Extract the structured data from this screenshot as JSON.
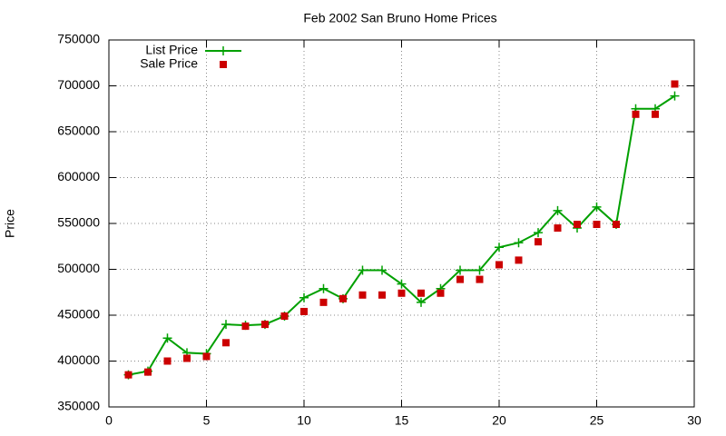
{
  "chart_data": {
    "type": "line",
    "title": "Feb 2002 San Bruno Home Prices",
    "y_label": "Price",
    "x": [
      1,
      2,
      3,
      4,
      5,
      6,
      7,
      8,
      9,
      10,
      11,
      12,
      13,
      14,
      15,
      16,
      17,
      18,
      19,
      20,
      21,
      22,
      23,
      24,
      25,
      26,
      27,
      28,
      29
    ],
    "series": [
      {
        "name": "List Price",
        "color": "#00a000",
        "mode": "lines+points",
        "marker": "plus",
        "values": [
          385000,
          389000,
          425000,
          409000,
          408000,
          440000,
          439000,
          440000,
          449000,
          469000,
          479000,
          468000,
          499000,
          499000,
          484000,
          464000,
          479000,
          499000,
          499000,
          524000,
          529000,
          540000,
          564000,
          545000,
          568000,
          549000,
          675000,
          675000,
          689000
        ]
      },
      {
        "name": "Sale Price",
        "color": "#cc0000",
        "mode": "points",
        "marker": "square",
        "values": [
          385000,
          388000,
          400000,
          403000,
          405000,
          420000,
          438000,
          440000,
          449000,
          454000,
          464000,
          468000,
          472000,
          472000,
          474000,
          474000,
          474000,
          489000,
          489000,
          505000,
          510000,
          530000,
          545000,
          549000,
          549000,
          549000,
          669000,
          669000,
          702000
        ]
      }
    ],
    "xlim": [
      0,
      30
    ],
    "xticks": [
      0,
      5,
      10,
      15,
      20,
      25,
      30
    ],
    "ylim": [
      350000,
      750000
    ],
    "yticks": [
      350000,
      400000,
      450000,
      500000,
      550000,
      600000,
      650000,
      700000,
      750000
    ],
    "grid": true,
    "legend": "top-left"
  }
}
